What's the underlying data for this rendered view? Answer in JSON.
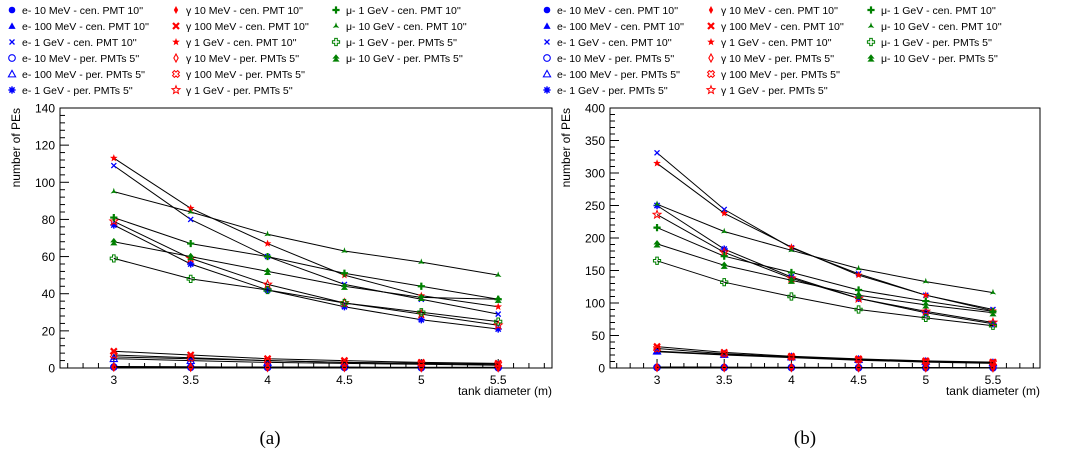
{
  "chart_data": [
    {
      "type": "line",
      "caption": "(a)",
      "xlabel": "tank diameter (m)",
      "ylabel": "number of PEs",
      "xlim": [
        2.65,
        5.85
      ],
      "ylim": [
        0,
        140
      ],
      "x_ticks": [
        "3",
        "3.5",
        "4",
        "4.5",
        "5",
        "5.5"
      ],
      "y_ticks": [
        "0",
        "20",
        "40",
        "60",
        "80",
        "100",
        "120",
        "140"
      ],
      "x": [
        3,
        3.5,
        4,
        4.5,
        5,
        5.5
      ],
      "series": [
        {
          "name": "e- 10 MeV - cen. PMT 10''",
          "values": [
            0.8,
            0.6,
            0.5,
            0.4,
            0.3,
            0.3
          ],
          "color": "#0000ff",
          "marker": "filled-circle"
        },
        {
          "name": "e- 100 MeV - cen. PMT 10''",
          "values": [
            6,
            5,
            4,
            3,
            2.5,
            2
          ],
          "color": "#0000ff",
          "marker": "filled-triangle"
        },
        {
          "name": "e- 1 GeV - cen. PMT 10''",
          "values": [
            109,
            80,
            60,
            45,
            37,
            29
          ],
          "color": "#0000ff",
          "marker": "x-small"
        },
        {
          "name": "e- 10 MeV - per. PMTs 5''",
          "values": [
            0.5,
            0.4,
            0.3,
            0.3,
            0.2,
            0.2
          ],
          "color": "#0000ff",
          "marker": "open-circle"
        },
        {
          "name": "e- 100 MeV - per. PMTs 5''",
          "values": [
            5,
            4,
            3,
            2.5,
            2,
            1.5
          ],
          "color": "#0000ff",
          "marker": "open-triangle"
        },
        {
          "name": "e- 1 GeV - per. PMTs 5''",
          "values": [
            77,
            56,
            42,
            33,
            26,
            21
          ],
          "color": "#0000ff",
          "marker": "asterisk"
        },
        {
          "name": "γ 10 MeV - cen. PMT 10''",
          "values": [
            0.8,
            0.6,
            0.5,
            0.4,
            0.3,
            0.3
          ],
          "color": "#ff0000",
          "marker": "filled-diamond"
        },
        {
          "name": "γ 100 MeV - cen. PMT 10''",
          "values": [
            9,
            7,
            5,
            4,
            3,
            2.5
          ],
          "color": "#ff0000",
          "marker": "x-bold"
        },
        {
          "name": "γ 1 GeV - cen. PMT 10''",
          "values": [
            113,
            86,
            67,
            50,
            39,
            33
          ],
          "color": "#ff0000",
          "marker": "star"
        },
        {
          "name": "γ 10 MeV - per. PMTs 5''",
          "values": [
            0.5,
            0.4,
            0.3,
            0.3,
            0.2,
            0.2
          ],
          "color": "#ff0000",
          "marker": "open-diamond"
        },
        {
          "name": "γ 100 MeV - per. PMTs 5''",
          "values": [
            7,
            5.5,
            4,
            3,
            2.5,
            2
          ],
          "color": "#ff0000",
          "marker": "open-cross-x"
        },
        {
          "name": "γ 1 GeV - per. PMTs 5''",
          "values": [
            79,
            59,
            45,
            35,
            29,
            23
          ],
          "color": "#ff0000",
          "marker": "open-star"
        },
        {
          "name": "μ- 1 GeV - cen. PMT 10''",
          "values": [
            81,
            67,
            60,
            51,
            44,
            37
          ],
          "color": "#008000",
          "marker": "plus-bold"
        },
        {
          "name": "μ- 10 GeV - cen. PMT 10''",
          "values": [
            95,
            84,
            72,
            63,
            57,
            50
          ],
          "color": "#008000",
          "marker": "tri-star"
        },
        {
          "name": "μ- 1 GeV - per. PMTs 5''",
          "values": [
            59,
            48,
            42,
            35,
            30,
            25
          ],
          "color": "#008000",
          "marker": "open-cross"
        },
        {
          "name": "μ- 10 GeV - per. PMTs 5''",
          "values": [
            68,
            60,
            52,
            44,
            38,
            37
          ],
          "color": "#008000",
          "marker": "double-triangle"
        }
      ]
    },
    {
      "type": "line",
      "caption": "(b)",
      "xlabel": "tank diameter (m)",
      "ylabel": "number of PEs",
      "xlim": [
        2.65,
        5.85
      ],
      "ylim": [
        0,
        400
      ],
      "x_ticks": [
        "3",
        "3.5",
        "4",
        "4.5",
        "5",
        "5.5"
      ],
      "y_ticks": [
        "0",
        "50",
        "100",
        "150",
        "200",
        "250",
        "300",
        "350",
        "400"
      ],
      "x": [
        3,
        3.5,
        4,
        4.5,
        5,
        5.5
      ],
      "series": [
        {
          "name": "e- 10 MeV - cen. PMT 10''",
          "values": [
            1.5,
            1.2,
            1,
            0.8,
            0.6,
            0.5
          ],
          "color": "#0000ff",
          "marker": "filled-circle"
        },
        {
          "name": "e- 100 MeV - cen. PMT 10''",
          "values": [
            25,
            20,
            16,
            12,
            9,
            7
          ],
          "color": "#0000ff",
          "marker": "filled-triangle"
        },
        {
          "name": "e- 1 GeV - cen. PMT 10''",
          "values": [
            331,
            244,
            185,
            145,
            112,
            90
          ],
          "color": "#0000ff",
          "marker": "x-small"
        },
        {
          "name": "e- 10 MeV - per. PMTs 5''",
          "values": [
            1,
            0.8,
            0.7,
            0.6,
            0.5,
            0.4
          ],
          "color": "#0000ff",
          "marker": "open-circle"
        },
        {
          "name": "e- 100 MeV - per. PMTs 5''",
          "values": [
            26,
            21,
            17,
            13,
            10,
            8
          ],
          "color": "#0000ff",
          "marker": "open-triangle"
        },
        {
          "name": "e- 1 GeV - per. PMTs 5''",
          "values": [
            250,
            183,
            140,
            107,
            85,
            68
          ],
          "color": "#0000ff",
          "marker": "asterisk"
        },
        {
          "name": "γ 10 MeV - cen. PMT 10''",
          "values": [
            1.5,
            1.2,
            1,
            0.8,
            0.6,
            0.5
          ],
          "color": "#ff0000",
          "marker": "filled-diamond"
        },
        {
          "name": "γ 100 MeV - cen. PMT 10''",
          "values": [
            33,
            24,
            18,
            14,
            11,
            9
          ],
          "color": "#ff0000",
          "marker": "x-bold"
        },
        {
          "name": "γ 1 GeV - cen. PMT 10''",
          "values": [
            315,
            238,
            186,
            143,
            112,
            88
          ],
          "color": "#ff0000",
          "marker": "star"
        },
        {
          "name": "γ 10 MeV - per. PMTs 5''",
          "values": [
            1,
            0.8,
            0.7,
            0.6,
            0.5,
            0.4
          ],
          "color": "#ff0000",
          "marker": "open-diamond"
        },
        {
          "name": "γ 100 MeV - per. PMTs 5''",
          "values": [
            30,
            22,
            17,
            13,
            10,
            8
          ],
          "color": "#ff0000",
          "marker": "open-cross-x"
        },
        {
          "name": "γ 1 GeV - per. PMTs 5''",
          "values": [
            236,
            178,
            138,
            107,
            87,
            70
          ],
          "color": "#ff0000",
          "marker": "open-star"
        },
        {
          "name": "μ- 1 GeV - cen. PMT 10''",
          "values": [
            216,
            172,
            147,
            120,
            103,
            87
          ],
          "color": "#008000",
          "marker": "plus-bold"
        },
        {
          "name": "μ- 10 GeV - cen. PMT 10''",
          "values": [
            252,
            210,
            181,
            153,
            133,
            116
          ],
          "color": "#008000",
          "marker": "tri-star"
        },
        {
          "name": "μ- 1 GeV - per. PMTs 5''",
          "values": [
            165,
            132,
            110,
            90,
            77,
            65
          ],
          "color": "#008000",
          "marker": "open-cross"
        },
        {
          "name": "μ- 10 GeV - per. PMTs 5''",
          "values": [
            191,
            158,
            135,
            112,
            97,
            85
          ],
          "color": "#008000",
          "marker": "double-triangle"
        }
      ]
    }
  ]
}
